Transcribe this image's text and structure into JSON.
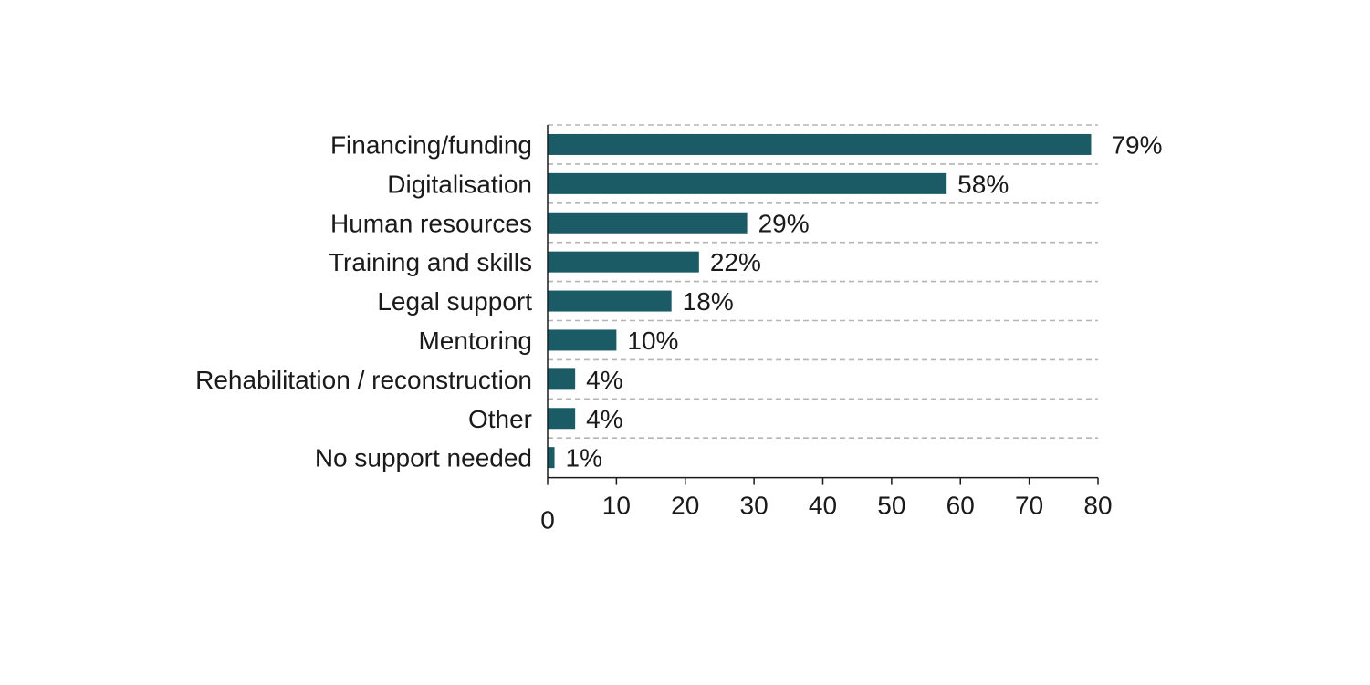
{
  "chart_data": {
    "type": "bar",
    "orientation": "horizontal",
    "title": "",
    "xlabel": "",
    "ylabel": "",
    "categories": [
      "Financing/funding",
      "Digitalisation",
      "Human resources",
      "Training and skills",
      "Legal support",
      "Mentoring",
      "Rehabilitation / reconstruction",
      "Other",
      "No support needed"
    ],
    "values": [
      79,
      58,
      29,
      22,
      18,
      10,
      4,
      4,
      1
    ],
    "value_labels": [
      "79%",
      "58%",
      "29%",
      "22%",
      "18%",
      "10%",
      "4%",
      "4%",
      "1%"
    ],
    "xlim": [
      0,
      80
    ],
    "xticks": [
      0,
      10,
      20,
      30,
      40,
      50,
      60,
      70,
      80
    ],
    "xtick_labels": [
      "0",
      "10",
      "20",
      "30",
      "40",
      "50",
      "60",
      "70",
      "80"
    ],
    "grid": "dashed horizontal separators",
    "bar_color": "#1b5b66",
    "grid_color": "#b5b5b5",
    "axis_color": "#1a1a1a",
    "legend": "none"
  }
}
